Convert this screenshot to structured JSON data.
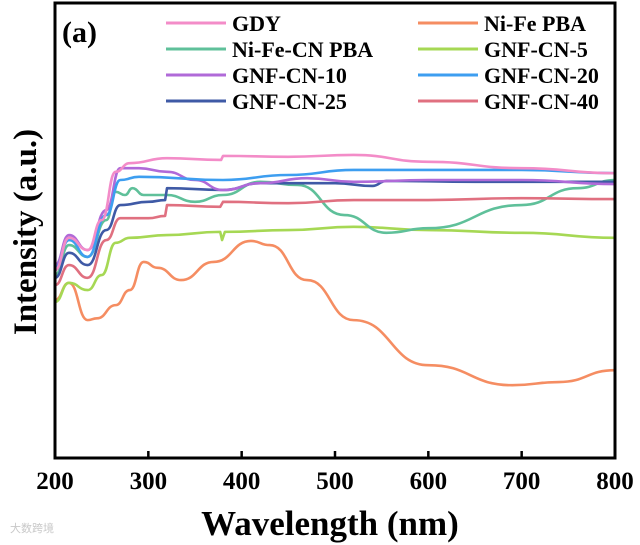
{
  "chart_data": {
    "type": "line",
    "panel_label": "(a)",
    "xlabel": "Wavelength (nm)",
    "ylabel": "Intensity (a.u.)",
    "xlim": [
      200,
      800
    ],
    "ylim": [
      0,
      100
    ],
    "xticks": [
      "200",
      "300",
      "400",
      "500",
      "600",
      "700",
      "800"
    ],
    "yticks": [],
    "grid": false,
    "legend_position": "top",
    "series": [
      {
        "name": "GDY",
        "color": "#f38cc8",
        "x": [
          200,
          215,
          235,
          250,
          265,
          280,
          320,
          378,
          380,
          450,
          520,
          600,
          700,
          800
        ],
        "y": [
          41.3,
          48.4,
          45.7,
          52.3,
          62.9,
          64.8,
          65.9,
          65.5,
          66.4,
          66.2,
          66.6,
          65.1,
          63.7,
          62.6
        ]
      },
      {
        "name": "Ni-Fe PBA",
        "color": "#f58d62",
        "x": [
          200,
          215,
          235,
          245,
          265,
          280,
          295,
          310,
          335,
          370,
          410,
          430,
          470,
          520,
          600,
          690,
          740,
          800
        ],
        "y": [
          34.7,
          38.5,
          30.3,
          30.7,
          33.6,
          36.9,
          43.1,
          41.8,
          39.1,
          43.1,
          47.7,
          46.8,
          39.1,
          30.3,
          20.4,
          16.0,
          16.7,
          19.3
        ]
      },
      {
        "name": "Ni-Fe-CN PBA",
        "color": "#5fc09a",
        "x": [
          200,
          215,
          235,
          255,
          265,
          275,
          283,
          295,
          320,
          350,
          380,
          420,
          460,
          510,
          555,
          600,
          700,
          760,
          800
        ],
        "y": [
          40.2,
          46.8,
          44.2,
          52.3,
          58.5,
          57.8,
          59.3,
          57.8,
          57.8,
          56.3,
          57.8,
          60.7,
          60.0,
          53.4,
          49.5,
          50.5,
          55.6,
          59.3,
          61.1
        ]
      },
      {
        "name": "GNF-CN-5",
        "color": "#a6d854",
        "x": [
          200,
          215,
          235,
          250,
          265,
          280,
          320,
          377,
          379,
          382,
          450,
          520,
          600,
          700,
          800
        ],
        "y": [
          34.3,
          38.5,
          36.9,
          40.2,
          47.3,
          48.4,
          49.0,
          49.7,
          47.9,
          49.7,
          50.1,
          50.8,
          50.1,
          49.5,
          48.4
        ]
      },
      {
        "name": "GNF-CN-10",
        "color": "#b06ad8",
        "x": [
          200,
          215,
          235,
          255,
          270,
          290,
          320,
          350,
          380,
          420,
          470,
          520,
          600,
          700,
          800
        ],
        "y": [
          42.4,
          49.0,
          45.7,
          54.5,
          63.7,
          63.7,
          62.9,
          61.1,
          58.9,
          60.4,
          61.5,
          60.7,
          61.1,
          61.1,
          60.2
        ]
      },
      {
        "name": "GNF-CN-20",
        "color": "#3d9ef0",
        "x": [
          200,
          215,
          235,
          255,
          270,
          290,
          380,
          450,
          520,
          600,
          700,
          800
        ],
        "y": [
          41.8,
          47.9,
          44.2,
          53.4,
          61.1,
          61.8,
          61.1,
          62.2,
          63.3,
          63.3,
          63.3,
          62.6
        ]
      },
      {
        "name": "GNF-CN-25",
        "color": "#3f5aa6",
        "x": [
          200,
          215,
          235,
          255,
          270,
          300,
          318,
          320,
          380,
          420,
          500,
          540,
          555,
          650,
          800
        ],
        "y": [
          39.6,
          45.1,
          42.4,
          50.1,
          55.6,
          56.3,
          56.7,
          59.3,
          58.9,
          60.4,
          60.4,
          59.8,
          60.9,
          60.7,
          60.7
        ]
      },
      {
        "name": "GNF-CN-40",
        "color": "#e07080",
        "x": [
          200,
          215,
          235,
          255,
          270,
          300,
          318,
          320,
          377,
          380,
          450,
          520,
          600,
          700,
          800
        ],
        "y": [
          38.0,
          42.4,
          39.6,
          47.9,
          52.7,
          52.7,
          53.2,
          55.6,
          55.2,
          56.3,
          56.0,
          56.7,
          56.7,
          57.1,
          56.9
        ]
      }
    ]
  },
  "watermark": "大数跨境"
}
